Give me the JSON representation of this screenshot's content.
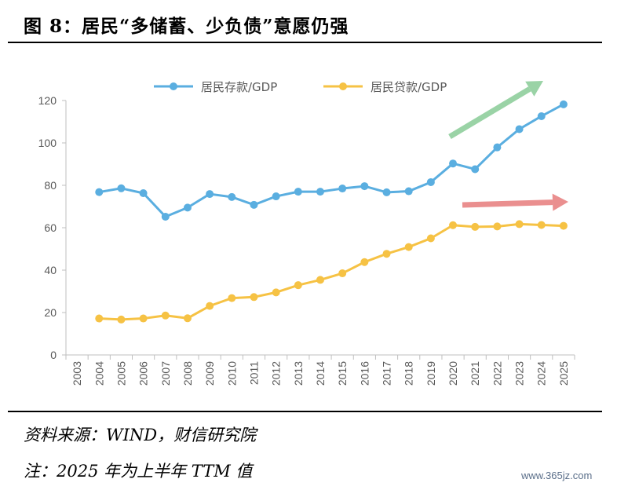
{
  "header": {
    "title": "图 8：居民“多储蓄、少负债”意愿仍强"
  },
  "footer": {
    "source": "资料来源：WIND，财信研究院",
    "note": "注：2025 年为上半年 TTM 值",
    "watermark": "www.365jz.com"
  },
  "colors": {
    "deposit": "#5aaee0",
    "loan": "#f6c244",
    "arrow_up": "#9ad3a6",
    "arrow_flat": "#ea8f8f",
    "axis": "#bfbfbf"
  },
  "chart_data": {
    "type": "line",
    "title": "",
    "xlabel": "",
    "ylabel": "",
    "x": [
      "2003",
      "2004",
      "2005",
      "2006",
      "2007",
      "2008",
      "2009",
      "2010",
      "2011",
      "2012",
      "2013",
      "2014",
      "2015",
      "2016",
      "2017",
      "2018",
      "2019",
      "2020",
      "2021",
      "2022",
      "2023",
      "2024",
      "2025"
    ],
    "ylim": [
      0,
      120
    ],
    "yticks": [
      0,
      20,
      40,
      60,
      80,
      100,
      120
    ],
    "grid": false,
    "legend": "top",
    "series": [
      {
        "name": "居民存款/GDP",
        "color": "#5aaee0",
        "values": [
          null,
          76.8,
          78.6,
          76.3,
          65.2,
          69.5,
          75.9,
          74.5,
          70.8,
          74.8,
          77.0,
          77.0,
          78.5,
          79.6,
          76.7,
          77.2,
          81.5,
          90.3,
          87.6,
          97.9,
          106.5,
          112.6,
          118.2
        ]
      },
      {
        "name": "居民贷款/GDP",
        "color": "#f6c244",
        "values": [
          null,
          17.2,
          16.7,
          17.2,
          18.6,
          17.3,
          23.1,
          26.8,
          27.3,
          29.5,
          32.9,
          35.4,
          38.5,
          43.8,
          47.7,
          50.9,
          55.0,
          61.2,
          60.4,
          60.6,
          61.7,
          61.3,
          60.9
        ]
      }
    ],
    "annotations": [
      {
        "type": "arrow",
        "color": "#9ad3a6",
        "direction": "up-right"
      },
      {
        "type": "arrow",
        "color": "#ea8f8f",
        "direction": "right"
      }
    ]
  }
}
